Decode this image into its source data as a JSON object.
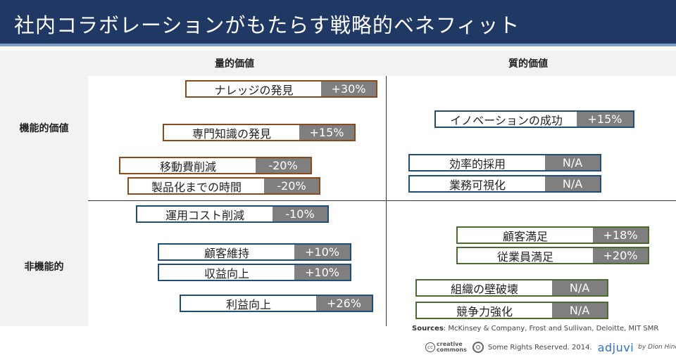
{
  "title": "社内コラボレーションがもたらす戦略的ベネフィット",
  "columns": {
    "quantitative": "量的価値",
    "qualitative": "質的価値"
  },
  "rows": {
    "functional": "機能的価値",
    "non_functional": "非機能的"
  },
  "items": {
    "knowledge": {
      "label": "ナレッジの発見",
      "value": "+30%"
    },
    "expertise": {
      "label": "専門知識の発見",
      "value": "+15%"
    },
    "travel": {
      "label": "移動費削減",
      "value": "-20%"
    },
    "ttm": {
      "label": "製品化までの時間",
      "value": "-20%"
    },
    "innovation": {
      "label": "イノベーションの成功",
      "value": "+15%"
    },
    "hiring": {
      "label": "効率的採用",
      "value": "N/A"
    },
    "visibility": {
      "label": "業務可視化",
      "value": "N/A"
    },
    "opcost": {
      "label": "運用コスト削減",
      "value": "-10%"
    },
    "retention": {
      "label": "顧客維持",
      "value": "+10%"
    },
    "revenue": {
      "label": "収益向上",
      "value": "+10%"
    },
    "profit": {
      "label": "利益向上",
      "value": "+26%"
    },
    "custsat": {
      "label": "顧客満足",
      "value": "+18%"
    },
    "empsat": {
      "label": "従業員満足",
      "value": "+20%"
    },
    "org": {
      "label": "組織の壁破壊",
      "value": "N/A"
    },
    "compete": {
      "label": "競争力強化",
      "value": "N/A"
    }
  },
  "sources": {
    "label": "Sources",
    "text": ": McKinsey & Company, Frost and Sullivan, Deloitte, MIT SMR"
  },
  "credit": {
    "cc_top": "creative",
    "cc_bottom": "commons",
    "rights": "Some Rights Reserved. 2014.",
    "brand": "adjuvi",
    "byline": "by Dion Hinchcliffe"
  }
}
